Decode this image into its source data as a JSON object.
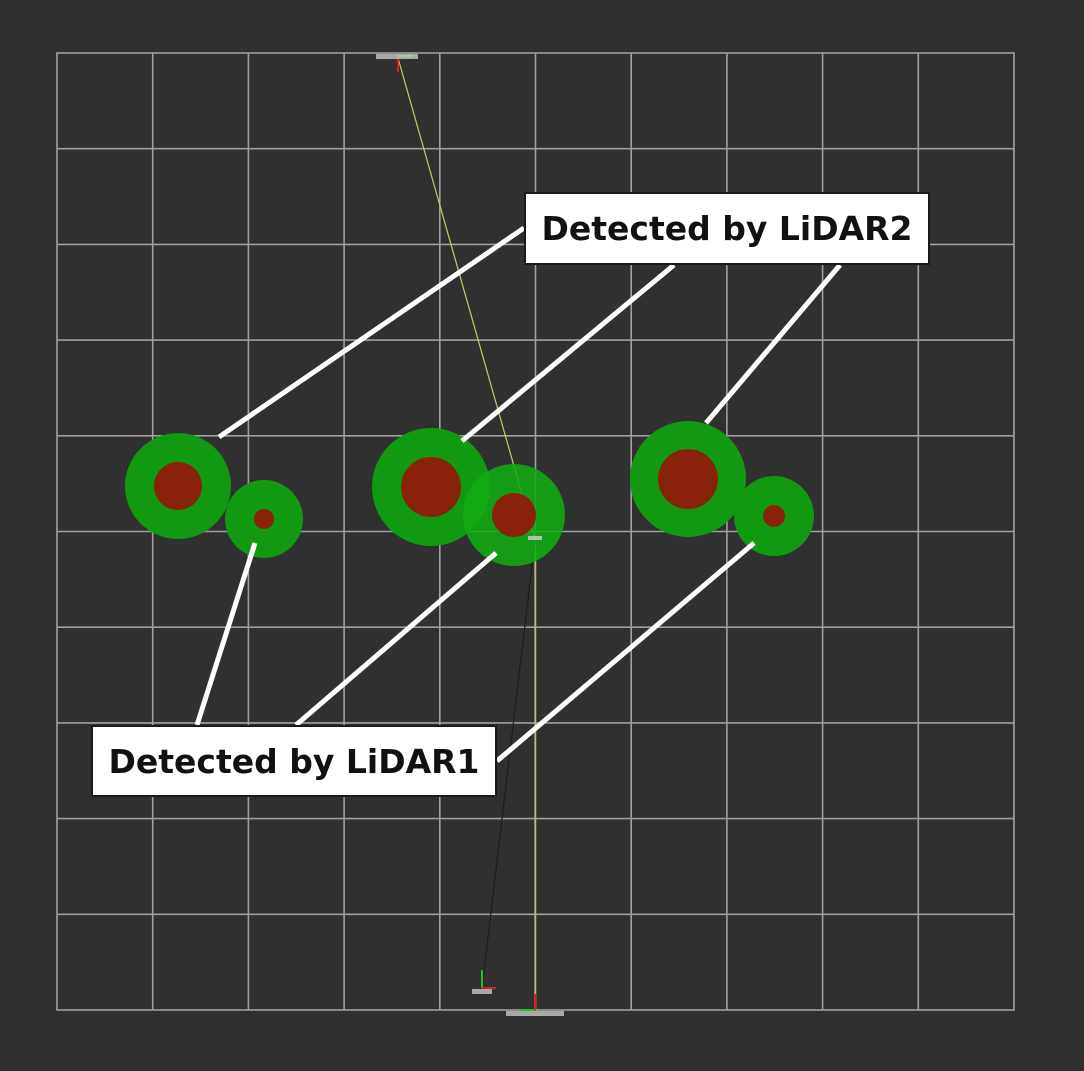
{
  "scene": {
    "background_color": "#303030",
    "grid_color": "#a0a0a0",
    "outer_detection_color": "#119911",
    "inner_detection_color": "#882208",
    "path_color_1": "#c8c86a",
    "path_color_2": "#1c1c1c",
    "leader_line_color": "#ffffff"
  },
  "callouts": {
    "lidar2_label": "Detected by LiDAR2",
    "lidar1_label": "Detected by LiDAR1"
  },
  "icons": {
    "top_frame": "axes-frame-icon",
    "lower_left_frame": "axes-frame-icon",
    "bottom_frame": "axes-frame-icon"
  }
}
